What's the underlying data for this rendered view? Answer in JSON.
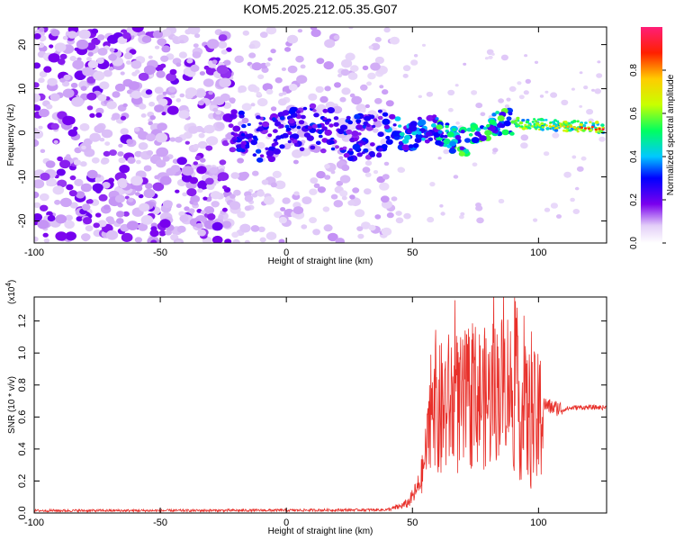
{
  "title": "KOM5.2025.212.05.35.G07",
  "chart_data": [
    {
      "type": "heatmap",
      "xlabel": "Height of straight line (km)",
      "ylabel": "Frequency (Hz)",
      "xlim": [
        -100,
        127
      ],
      "ylim": [
        -25,
        24
      ],
      "xticks": [
        -100,
        -50,
        0,
        50,
        100
      ],
      "yticks": [
        -20,
        -10,
        0,
        10,
        20
      ],
      "colorbar": {
        "label": "Normalized spectral amplitude",
        "range": [
          0,
          1
        ],
        "ticks": [
          "0.0",
          "0.2",
          "0.4",
          "0.6",
          "0.8"
        ]
      }
    },
    {
      "type": "line",
      "xlabel": "Height of straight line (km)",
      "ylabel": "SNR (10 * v/v)",
      "multiplier": "(x10",
      "multiplier_exp": "4",
      "multiplier_close": ")",
      "xlim": [
        -100,
        127
      ],
      "ylim": [
        0,
        1.35
      ],
      "xticks": [
        -100,
        -50,
        0,
        50,
        100
      ],
      "yticks": [
        "0.0",
        "0.2",
        "0.4",
        "0.6",
        "0.8",
        "1.0",
        "1.2"
      ],
      "color": "#e8302a",
      "series": [
        {
          "x": [
            -100,
            -50,
            0,
            40,
            45,
            48,
            50,
            52,
            54,
            56,
            57,
            58,
            60,
            65,
            70,
            75,
            80,
            85,
            88,
            90,
            95,
            100,
            102,
            105,
            110,
            115,
            120,
            127
          ],
          "y": [
            0.015,
            0.015,
            0.017,
            0.02,
            0.04,
            0.06,
            0.1,
            0.15,
            0.25,
            0.45,
            0.7,
            0.85,
            0.6,
            0.7,
            0.65,
            0.75,
            0.7,
            0.8,
            0.85,
            0.7,
            0.6,
            0.55,
            0.68,
            0.66,
            0.65,
            0.66,
            0.66,
            0.66
          ]
        }
      ]
    }
  ]
}
